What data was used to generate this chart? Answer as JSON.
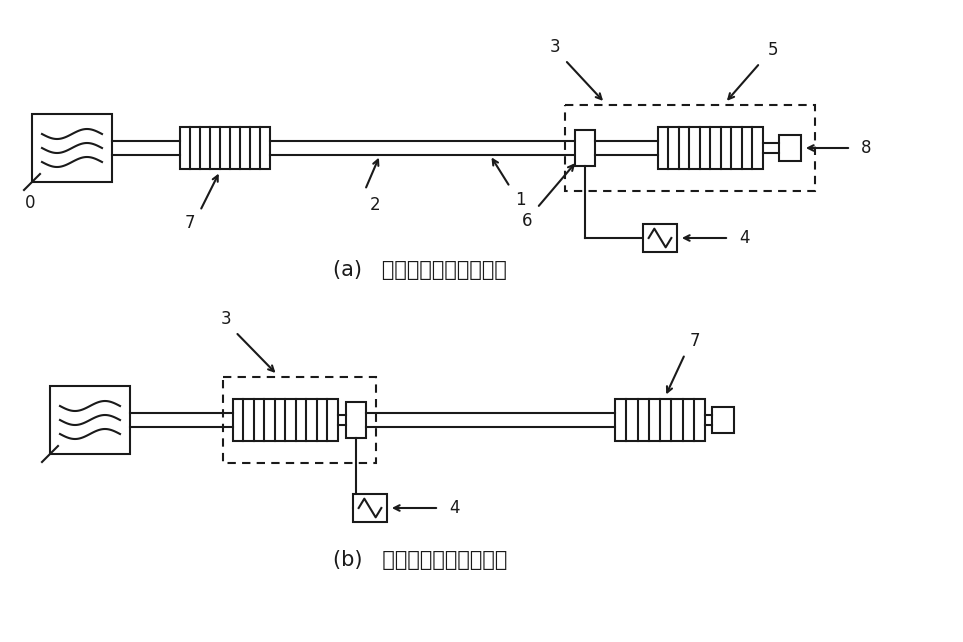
{
  "bg_color": "#ffffff",
  "line_color": "#1a1a1a",
  "label_a": "(a)   试样的远端表面波测量",
  "label_b": "(b)   试样的近端表面波测量",
  "font_size_label": 15,
  "font_size_number": 12
}
